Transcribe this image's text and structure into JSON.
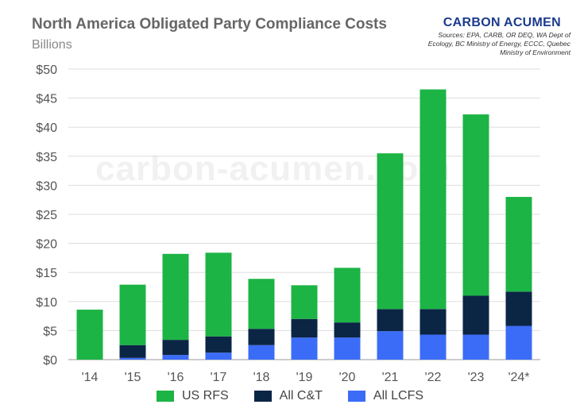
{
  "header": {
    "title": "North America Obligated Party Compliance Costs",
    "subtitle": "Billions",
    "brand": "CARBON ACUMEN",
    "sources": "Sources: EPA, CARB, OR DEQ, WA Dept of Ecology, BC Ministry of Energy, ECCC, Quebec Ministry of Environment"
  },
  "watermark": "carbon-acumen.com",
  "chart_data": {
    "type": "bar",
    "stacked": true,
    "title": "North America Obligated Party Compliance Costs",
    "subtitle": "Billions",
    "categories": [
      "'14",
      "'15",
      "'16",
      "'17",
      "'18",
      "'19",
      "'20",
      "'21",
      "'22",
      "'23",
      "'24*"
    ],
    "series": [
      {
        "name": "All LCFS",
        "color": "#3b6cf7",
        "values": [
          0.0,
          0.3,
          0.8,
          1.2,
          2.5,
          3.8,
          3.8,
          4.9,
          4.3,
          4.3,
          5.8
        ]
      },
      {
        "name": "All C&T",
        "color": "#0b2545",
        "values": [
          0.0,
          2.2,
          2.6,
          2.8,
          2.8,
          3.2,
          2.6,
          3.8,
          4.4,
          6.7,
          5.9
        ]
      },
      {
        "name": "US RFS",
        "color": "#1cb445",
        "values": [
          8.6,
          10.4,
          14.8,
          14.4,
          8.6,
          5.8,
          9.4,
          26.8,
          37.8,
          31.2,
          16.3
        ]
      }
    ],
    "ylim": [
      0,
      50
    ],
    "yticks": [
      "$0",
      "$5",
      "$10",
      "$15",
      "$20",
      "$25",
      "$30",
      "$35",
      "$40",
      "$45",
      "$50"
    ],
    "grid": true,
    "legend_position": "bottom",
    "legend_order": [
      "US RFS",
      "All C&T",
      "All LCFS"
    ]
  }
}
